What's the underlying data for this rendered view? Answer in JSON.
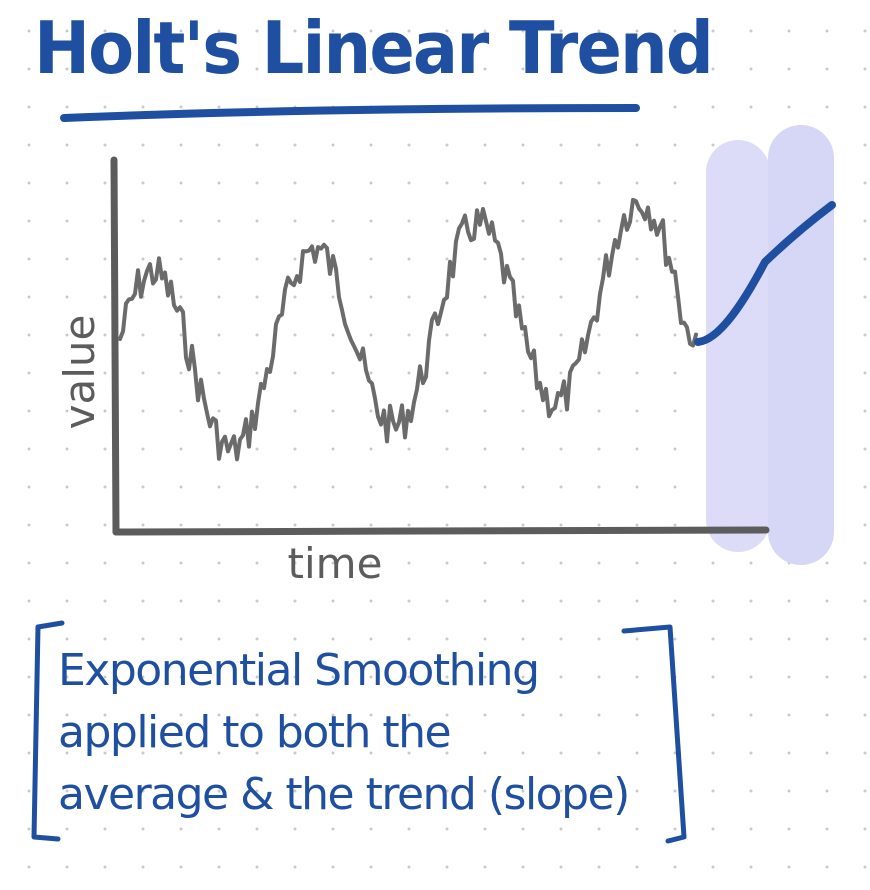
{
  "title": "Holt's Linear Trend",
  "chart": {
    "ylabel": "value",
    "xlabel": "time",
    "colors": {
      "series": "#6b6b6b",
      "axis": "#5c5c5c",
      "forecast": "#1f4fa0",
      "band": "#dcdcf8"
    }
  },
  "note": {
    "lines": [
      "Exponential Smoothing",
      "applied to both the",
      "average & the trend (slope)"
    ],
    "color": "#1f4fa0"
  },
  "icons": {
    "bracket-left": "left-bracket-icon",
    "bracket-right": "right-bracket-icon"
  }
}
